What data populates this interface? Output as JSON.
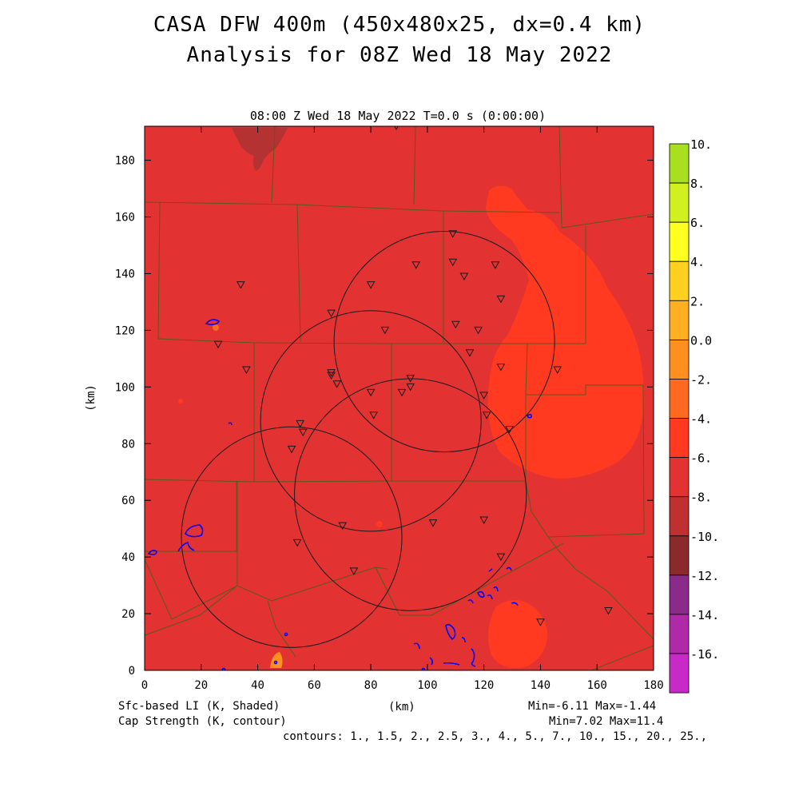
{
  "header": {
    "title_line1": "CASA DFW 400m (450x480x25, dx=0.4 km)",
    "title_line2": "Analysis for 08Z Wed 18 May 2022",
    "plot_time": "08:00 Z Wed 18 May 2022    T=0.0 s (0:00:00)"
  },
  "axes": {
    "x_label": "(km)",
    "y_label": "(km)",
    "x_ticks": [
      "0",
      "20",
      "40",
      "60",
      "80",
      "100",
      "120",
      "140",
      "160",
      "180"
    ],
    "y_ticks": [
      "0",
      "20",
      "40",
      "60",
      "80",
      "100",
      "120",
      "140",
      "160",
      "180"
    ],
    "x_range": [
      0,
      180
    ],
    "y_range": [
      0,
      192
    ]
  },
  "colorbar": {
    "labels": [
      "10.",
      "8.",
      "6.",
      "4.",
      "2.",
      "0.0",
      "-2.",
      "-4.",
      "-6.",
      "-8.",
      "-10.",
      "-12.",
      "-14.",
      "-16."
    ],
    "colors": [
      "#a8e020",
      "#d0f020",
      "#ffff20",
      "#ffd020",
      "#ffb020",
      "#ff9020",
      "#ff6a20",
      "#ff3a20",
      "#e23232",
      "#c03030",
      "#8a2a2a",
      "#8a2a8a",
      "#b02aa8",
      "#c82ac8",
      "#e040e0"
    ]
  },
  "footer": {
    "left1": "Sfc-based LI (K, Shaded)",
    "left2": "Cap Strength (K, contour)",
    "center": "(km)",
    "right1": "Min=-6.11 Max=-1.44",
    "right2": "Min=7.02 Max=11.4",
    "contours": "contours: 1., 1.5, 2., 2.5, 3., 4., 5., 7., 10., 15., 20., 25.,"
  },
  "map": {
    "base_color": "#e23232",
    "warm_color": "#ff3a20",
    "cool_color": "#b43232",
    "border_color": "#5a5a1e",
    "contour_color": "#0000ff",
    "radar_rings_km": [
      {
        "x": 106,
        "y": 116,
        "r": 39
      },
      {
        "x": 80,
        "y": 88,
        "r": 39
      },
      {
        "x": 52,
        "y": 47,
        "r": 39
      },
      {
        "x": 94,
        "y": 62,
        "r": 41
      }
    ],
    "stations_km": [
      [
        89,
        192
      ],
      [
        34,
        136
      ],
      [
        109,
        154
      ],
      [
        96,
        143
      ],
      [
        80,
        136
      ],
      [
        109,
        144
      ],
      [
        113,
        139
      ],
      [
        124,
        143
      ],
      [
        126,
        131
      ],
      [
        66,
        126
      ],
      [
        110,
        122
      ],
      [
        85,
        120
      ],
      [
        118,
        120
      ],
      [
        26,
        115
      ],
      [
        115,
        112
      ],
      [
        36,
        106
      ],
      [
        66,
        105
      ],
      [
        126,
        107
      ],
      [
        146,
        106
      ],
      [
        66,
        104
      ],
      [
        68,
        101
      ],
      [
        94,
        103
      ],
      [
        80,
        98
      ],
      [
        91,
        98
      ],
      [
        94,
        100
      ],
      [
        120,
        97
      ],
      [
        81,
        90
      ],
      [
        55,
        87
      ],
      [
        56,
        84
      ],
      [
        121,
        90
      ],
      [
        129,
        85
      ],
      [
        52,
        78
      ],
      [
        70,
        51
      ],
      [
        102,
        52
      ],
      [
        120,
        53
      ],
      [
        54,
        45
      ],
      [
        126,
        40
      ],
      [
        74,
        35
      ],
      [
        140,
        17
      ],
      [
        164,
        21
      ]
    ]
  }
}
